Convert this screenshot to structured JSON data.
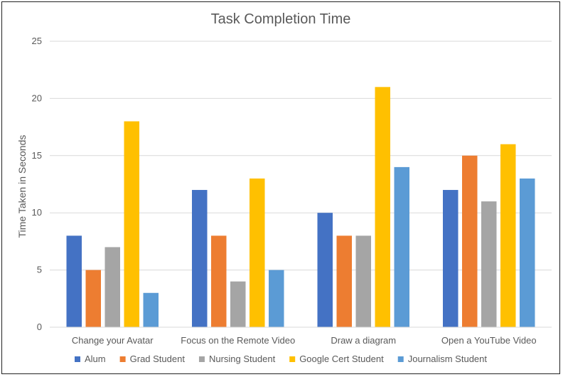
{
  "chart_data": {
    "type": "bar",
    "title": "Task Completion Time",
    "xlabel": "",
    "ylabel": "Time Taken in Seconds",
    "ylim": [
      0,
      25
    ],
    "yticks": [
      0,
      5,
      10,
      15,
      20,
      25
    ],
    "grid": true,
    "legend_position": "bottom",
    "categories": [
      "Change your Avatar",
      "Focus on the Remote Video",
      "Draw a diagram",
      "Open a YouTube Video"
    ],
    "series": [
      {
        "name": "Alum",
        "color": "#4472C4",
        "values": [
          8,
          12,
          10,
          12
        ]
      },
      {
        "name": "Grad Student",
        "color": "#ED7D31",
        "values": [
          5,
          8,
          8,
          15
        ]
      },
      {
        "name": "Nursing Student",
        "color": "#A5A5A5",
        "values": [
          7,
          4,
          8,
          11
        ]
      },
      {
        "name": "Google Cert Student",
        "color": "#FFC000",
        "values": [
          18,
          13,
          21,
          16
        ]
      },
      {
        "name": "Journalism Student",
        "color": "#5B9BD5",
        "values": [
          3,
          5,
          14,
          13
        ]
      }
    ]
  }
}
